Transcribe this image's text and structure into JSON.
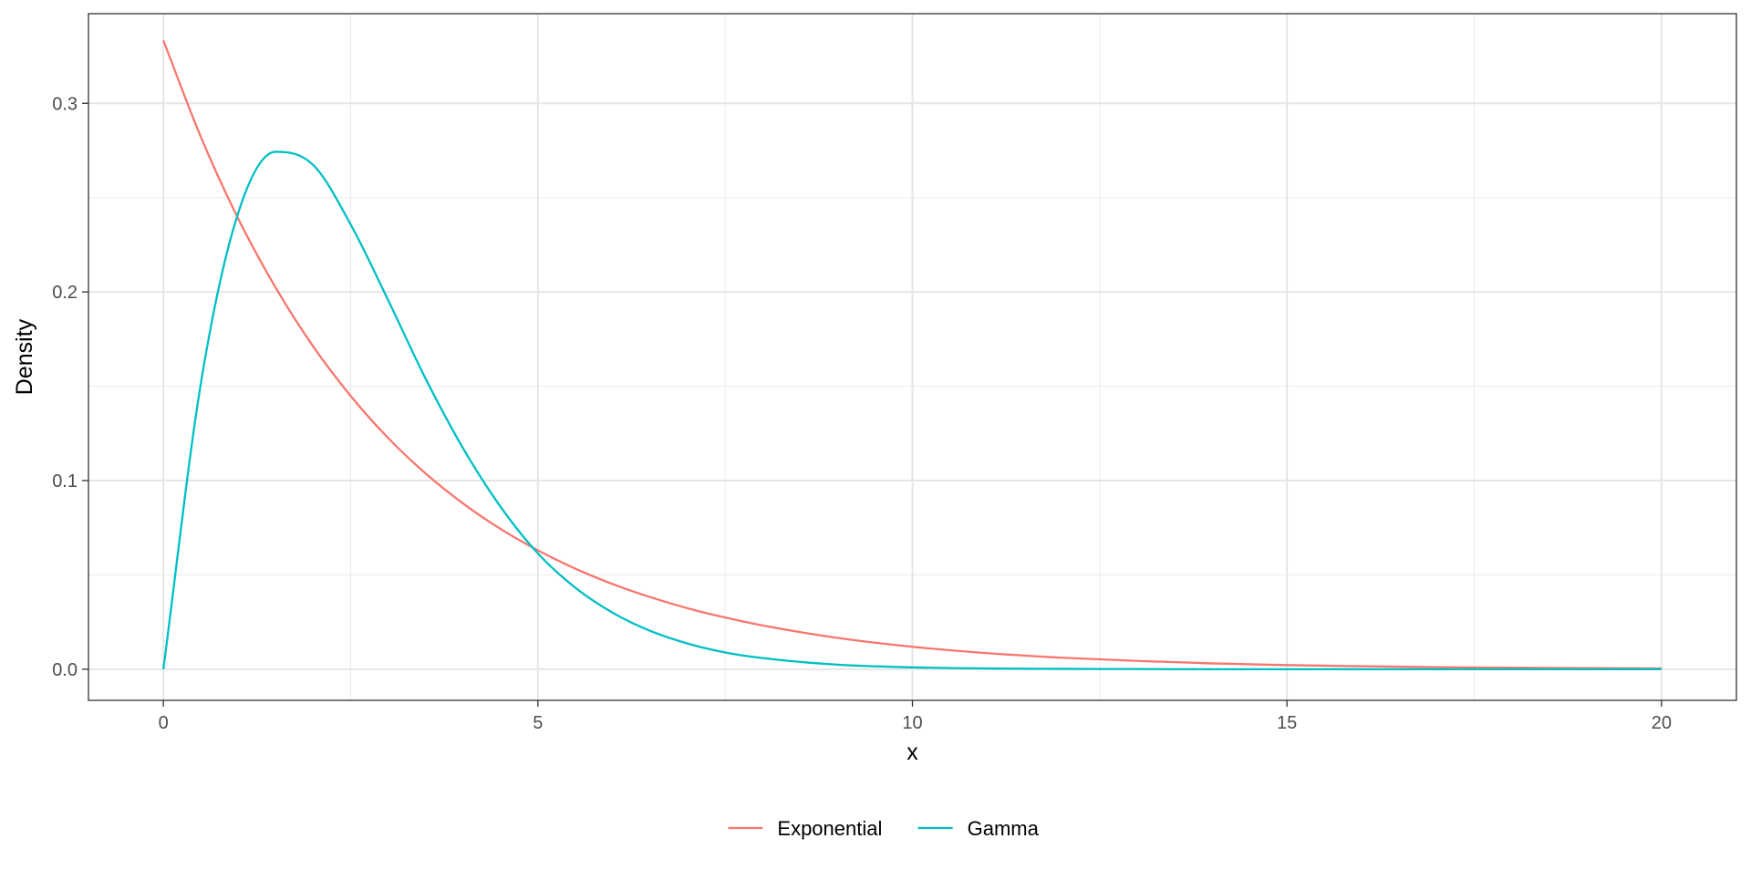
{
  "chart_data": {
    "type": "line",
    "title": "",
    "xlabel": "x",
    "ylabel": "Density",
    "xlim": [
      -1,
      21
    ],
    "ylim": [
      -0.0165,
      0.3475
    ],
    "x_ticks": [
      0,
      5,
      10,
      15,
      20
    ],
    "x_tick_labels": [
      "0",
      "5",
      "10",
      "15",
      "20"
    ],
    "x_minor_ticks": [
      2.5,
      7.5,
      12.5,
      17.5
    ],
    "y_ticks": [
      0.0,
      0.1,
      0.2,
      0.3
    ],
    "y_tick_labels": [
      "0.0",
      "0.1",
      "0.2",
      "0.3"
    ],
    "y_minor_ticks": [
      0.05,
      0.15,
      0.25
    ],
    "grid": true,
    "legend_position": "bottom",
    "x": [
      0,
      0.5,
      1,
      1.5,
      2,
      2.5,
      3,
      3.5,
      4,
      4.5,
      5,
      5.5,
      6,
      6.5,
      7,
      7.5,
      8,
      9,
      10,
      11,
      12,
      13,
      14,
      15,
      16,
      17,
      18,
      19,
      20
    ],
    "series": [
      {
        "name": "Exponential",
        "color": "#F8766D",
        "values": [
          0.3333,
          0.2822,
          0.2388,
          0.2022,
          0.1711,
          0.1449,
          0.1226,
          0.1038,
          0.0879,
          0.0744,
          0.063,
          0.0533,
          0.0451,
          0.0382,
          0.0323,
          0.0274,
          0.0232,
          0.0166,
          0.0119,
          0.0085,
          0.0061,
          0.0044,
          0.0031,
          0.0022,
          0.0016,
          0.0011,
          0.0008,
          0.0006,
          0.0004
        ]
      },
      {
        "name": "Gamma",
        "color": "#00BFC4",
        "values": [
          0.0,
          0.1514,
          0.242,
          0.2743,
          0.2673,
          0.2358,
          0.1957,
          0.1541,
          0.1172,
          0.0862,
          0.0614,
          0.0432,
          0.0299,
          0.0203,
          0.0136,
          0.0089,
          0.0059,
          0.0024,
          0.001,
          0.0004,
          0.0002,
          0.0001,
          0.0,
          0.0,
          0.0,
          0.0,
          0.0,
          0.0,
          0.0
        ]
      }
    ]
  }
}
